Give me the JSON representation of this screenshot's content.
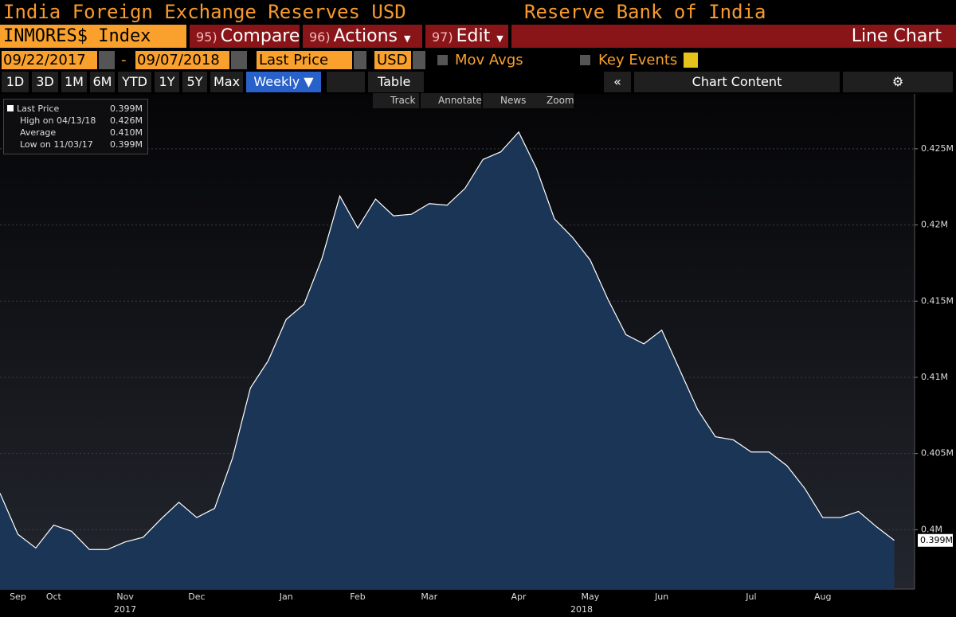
{
  "ui": {
    "title": "India Foreign Exchange Reserves USD",
    "source": "Reserve Bank of India",
    "ticker": "INMORES$ Index",
    "menu": [
      {
        "num": "95)",
        "label": "Compare"
      },
      {
        "num": "96)",
        "label": "Actions"
      },
      {
        "num": "97)",
        "label": "Edit"
      }
    ],
    "view": "Line Chart",
    "start_date": "09/22/2017",
    "date_sep": "-",
    "end_date": "09/07/2018",
    "field": "Last Price",
    "currency": "USD",
    "mov_avgs": "Mov Avgs",
    "key_events": "Key Events",
    "ranges": [
      "1D",
      "3D",
      "1M",
      "6M",
      "YTD",
      "1Y",
      "5Y",
      "Max"
    ],
    "period": "Weekly ▼",
    "table": "Table",
    "collapse": "«",
    "chart_content": "Chart Content",
    "tools": [
      "Track",
      "Annotate",
      "News",
      "Zoom"
    ]
  },
  "chart_data": {
    "type": "area",
    "color": "#1b3556",
    "line_color": "#ffffff",
    "values": [
      0.4024,
      0.3997,
      0.3988,
      0.4003,
      0.3999,
      0.3987,
      0.3987,
      0.3992,
      0.3995,
      0.4007,
      0.4018,
      0.4008,
      0.4014,
      0.4047,
      0.4093,
      0.4111,
      0.4138,
      0.4148,
      0.4178,
      0.4219,
      0.4198,
      0.4217,
      0.4206,
      0.4207,
      0.4214,
      0.4213,
      0.4224,
      0.4243,
      0.4248,
      0.4261,
      0.4237,
      0.4204,
      0.4192,
      0.4177,
      0.4151,
      0.4128,
      0.4122,
      0.4131,
      0.4105,
      0.4079,
      0.4061,
      0.4059,
      0.4051,
      0.4051,
      0.4042,
      0.4027,
      0.4008,
      0.4008,
      0.4012,
      0.4002,
      0.3993
    ],
    "categories": [
      null,
      "Sep",
      null,
      "Oct",
      null,
      null,
      null,
      "Nov",
      null,
      null,
      null,
      "Dec",
      null,
      null,
      null,
      null,
      "Jan",
      null,
      null,
      null,
      "Feb",
      null,
      null,
      null,
      "Mar",
      null,
      null,
      null,
      null,
      "Apr",
      null,
      null,
      null,
      "May",
      null,
      null,
      null,
      "Jun",
      null,
      null,
      null,
      null,
      "Jul",
      null,
      null,
      null,
      "Aug",
      null,
      null,
      null,
      null
    ],
    "years": [
      "2017",
      "2018"
    ],
    "ylim": [
      0.3961,
      0.4286
    ],
    "yticks": [
      {
        "value": 0.4,
        "label": "0.4M"
      },
      {
        "value": 0.405,
        "label": "0.405M"
      },
      {
        "value": 0.41,
        "label": "0.41M"
      },
      {
        "value": 0.415,
        "label": "0.415M"
      },
      {
        "value": 0.42,
        "label": "0.42M"
      },
      {
        "value": 0.425,
        "label": "0.425M"
      }
    ],
    "grid": true,
    "legend_items": [
      {
        "name": "Last Price",
        "value": "0.399M"
      },
      {
        "name": "High on 04/13/18",
        "value": "0.426M"
      },
      {
        "name": "Average",
        "value": "0.410M"
      },
      {
        "name": "Low on 11/03/17",
        "value": "0.399M"
      }
    ]
  }
}
